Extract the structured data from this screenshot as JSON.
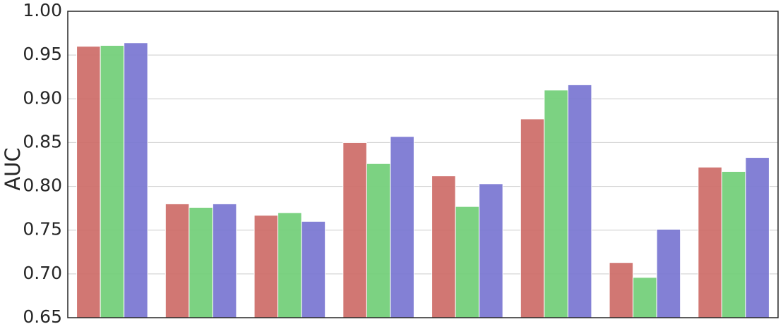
{
  "chart_data": {
    "type": "bar",
    "y_label": "AUC",
    "categories": [
      null,
      null,
      null,
      null,
      null,
      null,
      null,
      null
    ],
    "series": [
      {
        "color": "#cd6d68",
        "values": [
          0.96,
          0.78,
          0.767,
          0.85,
          0.812,
          0.877,
          0.713,
          0.822
        ]
      },
      {
        "color": "#72cf78",
        "values": [
          0.961,
          0.776,
          0.77,
          0.826,
          0.777,
          0.91,
          0.696,
          0.817
        ]
      },
      {
        "color": "#7a76d2",
        "values": [
          0.964,
          0.78,
          0.76,
          0.857,
          0.803,
          0.916,
          0.751,
          0.833
        ]
      }
    ],
    "ylim": [
      0.65,
      1.0
    ],
    "yticks": [
      0.65,
      {
        "value": 0.7,
        "label": "0.70"
      },
      0.75,
      {
        "value": 0.8,
        "label": "0.80"
      },
      0.85,
      {
        "value": 0.9,
        "label": "0.90"
      },
      0.95,
      {
        "value": 1.0,
        "label": "1.00"
      }
    ],
    "grid": true
  }
}
